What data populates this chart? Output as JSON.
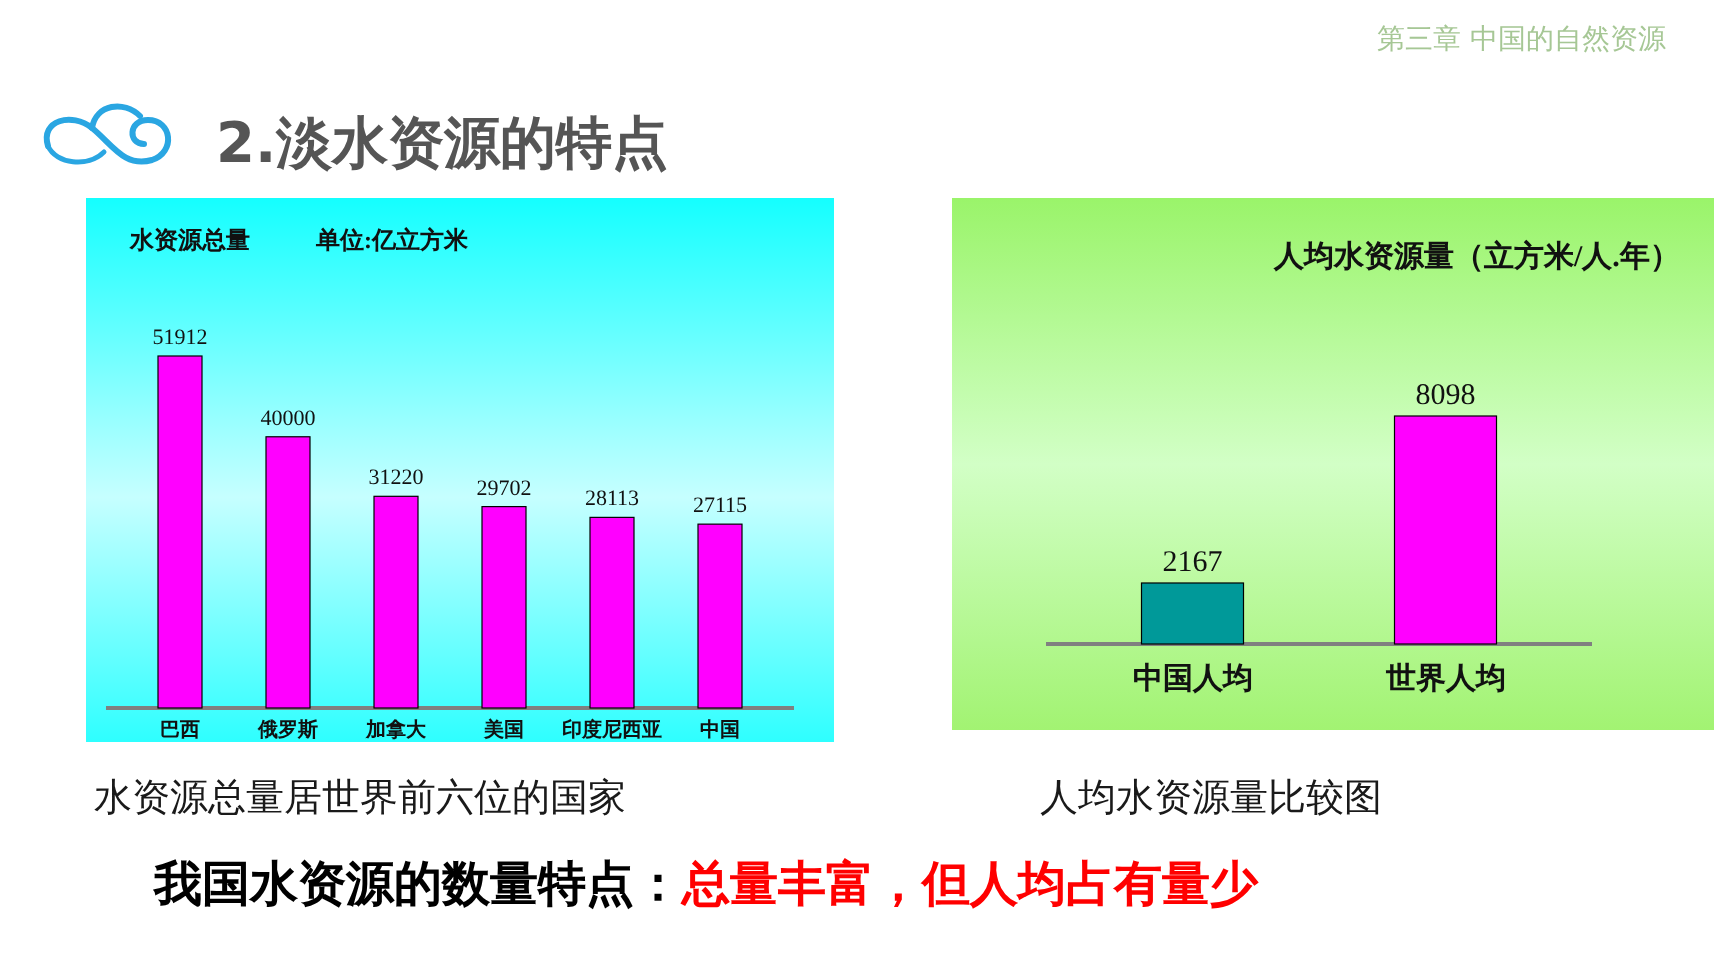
{
  "chart_data": [
    {
      "type": "other",
      "title": "2.淡水资源的特点",
      "annotations": [
        "第三章  中国的自然资源"
      ]
    },
    {
      "type": "bar",
      "title": "水资源总量",
      "subtitle": "单位:亿立方米",
      "categories": [
        "巴西",
        "俄罗斯",
        "加拿大",
        "美国",
        "印度尼西亚",
        "中国"
      ],
      "values": [
        51912,
        40000,
        31220,
        29702,
        28113,
        27115
      ],
      "color": "#ff00ff",
      "data_labels": true,
      "annotations": [
        "水资源总量居世界前六位的国家"
      ]
    },
    {
      "type": "bar",
      "title": "人均水资源量（立方米/人.年）",
      "categories": [
        "中国人均",
        "世界人均"
      ],
      "values": [
        2167,
        8098
      ],
      "colors": [
        "#009999",
        "#ff00ff"
      ],
      "data_labels": true,
      "annotations": [
        "人均水资源量比较图"
      ]
    },
    {
      "type": "other",
      "annotations": [
        "我国水资源的数量特点：",
        "总量丰富，但人均占有量少"
      ]
    }
  ]
}
